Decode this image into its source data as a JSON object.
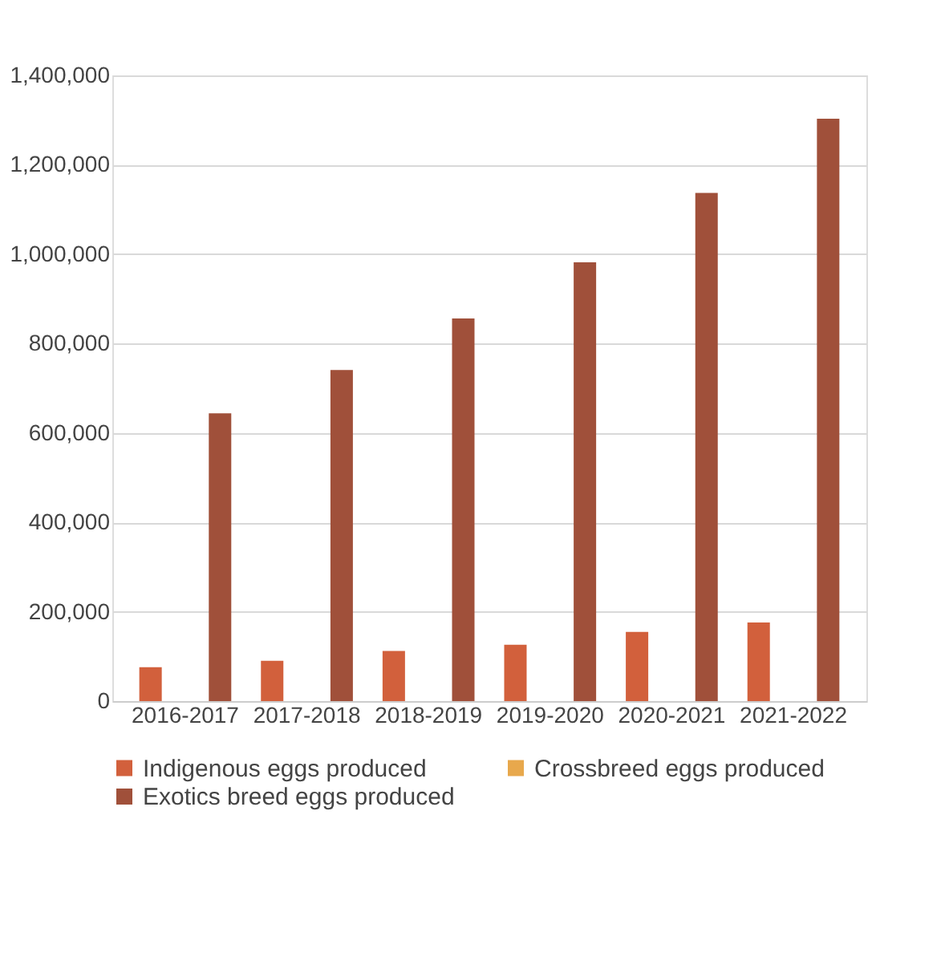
{
  "chart_data": {
    "type": "bar",
    "categories": [
      "2016-2017",
      "2017-2018",
      "2018-2019",
      "2019-2020",
      "2020-2021",
      "2021-2022"
    ],
    "series": [
      {
        "name": "Indigenous eggs produced",
        "color": "#d2603c",
        "values": [
          76000,
          90000,
          112000,
          126000,
          155000,
          176000
        ]
      },
      {
        "name": "Crossbreed eggs produced",
        "color": "#e8a84c",
        "values": [
          0,
          0,
          0,
          0,
          0,
          0
        ]
      },
      {
        "name": "Exotics breed eggs produced",
        "color": "#a0503a",
        "values": [
          644000,
          741000,
          856000,
          982000,
          1137000,
          1303000
        ]
      }
    ],
    "ylim": [
      0,
      1400000
    ],
    "yticks": [
      0,
      {
        "value": 200000,
        "label": "200,000"
      },
      {
        "value": 400000,
        "label": "400,000"
      },
      {
        "value": 600000,
        "label": "600,000"
      },
      {
        "value": 800000,
        "label": "800,000"
      },
      {
        "value": 1000000,
        "label": "1,000,000"
      },
      {
        "value": 1200000,
        "label": "1,200,000"
      },
      {
        "value": 1400000,
        "label": "1,400,000"
      }
    ],
    "grid": "y",
    "legend": "bottom"
  }
}
